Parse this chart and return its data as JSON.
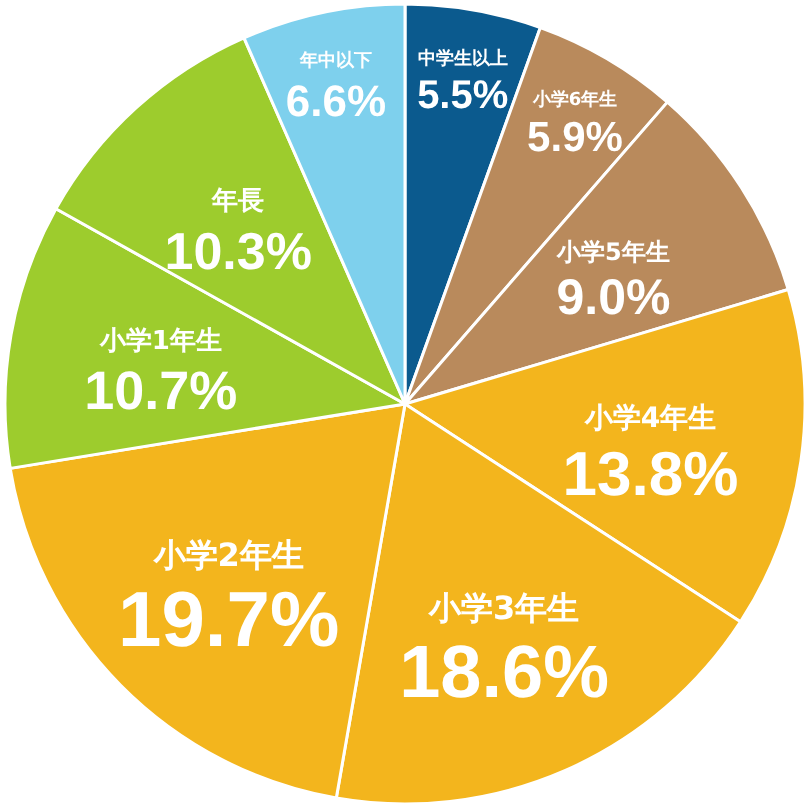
{
  "chart_data": {
    "type": "pie",
    "categories": [
      "中学生以上",
      "小学6年生",
      "小学5年生",
      "小学4年生",
      "小学3年生",
      "小学2年生",
      "小学1年生",
      "年長",
      "年中以下"
    ],
    "values": [
      5.5,
      5.9,
      9.0,
      13.8,
      18.6,
      19.7,
      10.7,
      10.3,
      6.6
    ],
    "colors": [
      "#0b5a8e",
      "#b98a5c",
      "#b98a5c",
      "#f3b51d",
      "#f3b51d",
      "#f3b51d",
      "#9dcc2d",
      "#9dcc2d",
      "#7ed0ed"
    ],
    "value_labels": [
      "5.5%",
      "5.9%",
      "9.0%",
      "13.8%",
      "18.6%",
      "19.7%",
      "10.7%",
      "10.3%",
      "6.6%"
    ]
  }
}
